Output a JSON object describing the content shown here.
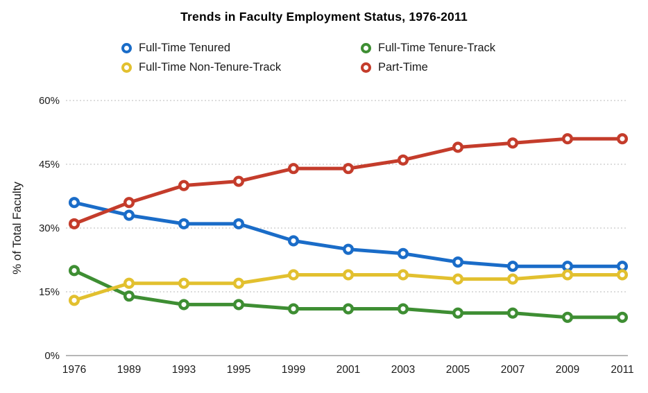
{
  "chart_data": {
    "type": "line",
    "title": "Trends in Faculty Employment Status, 1976-2011",
    "xlabel": "",
    "ylabel": "% of Total Faculty",
    "ylim": [
      0,
      60
    ],
    "yticks": [
      0,
      15,
      30,
      45,
      60
    ],
    "ytick_suffix": "%",
    "grid": "horizontal-dotted",
    "legend_position": "top",
    "marker_style": "open-circle",
    "categories": [
      "1976",
      "1989",
      "1993",
      "1995",
      "1999",
      "2001",
      "2003",
      "2005",
      "2007",
      "2009",
      "2011"
    ],
    "series": [
      {
        "name": "Full-Time Tenured",
        "color": "#1a6cc8",
        "values": [
          36,
          33,
          31,
          31,
          27,
          25,
          24,
          22,
          21,
          21,
          21
        ]
      },
      {
        "name": "Full-Time Tenure-Track",
        "color": "#3e8e33",
        "values": [
          20,
          14,
          12,
          12,
          11,
          11,
          11,
          10,
          10,
          9,
          9
        ]
      },
      {
        "name": "Full-Time Non-Tenure-Track",
        "color": "#e2c02f",
        "values": [
          13,
          17,
          17,
          17,
          19,
          19,
          19,
          18,
          18,
          19,
          19
        ]
      },
      {
        "name": "Part-Time",
        "color": "#c43c2b",
        "values": [
          31,
          36,
          40,
          41,
          44,
          44,
          46,
          49,
          50,
          51,
          51
        ]
      }
    ]
  }
}
